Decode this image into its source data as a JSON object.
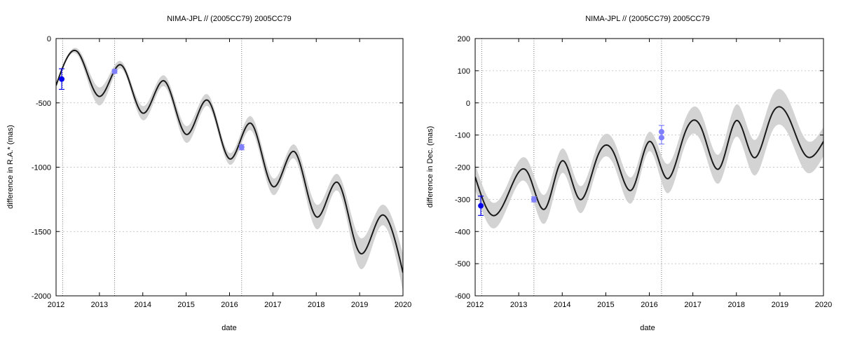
{
  "chart_data": [
    {
      "type": "line",
      "title": "NIMA-JPL // (2005CC79) 2005CC79",
      "xlabel": "date",
      "ylabel": "difference in R.A.* (mas)",
      "xlim": [
        2012,
        2020
      ],
      "ylim": [
        -2000,
        0
      ],
      "x_ticks": [
        "2012",
        "2013",
        "2014",
        "2015",
        "2016",
        "2017",
        "2018",
        "2019",
        "2020"
      ],
      "y_ticks": [
        "0",
        "-500",
        "-1000",
        "-1500",
        "-2000"
      ],
      "grid": "horizontal dotted",
      "vertical_lines": [
        2012.15,
        2013.35,
        2016.28
      ],
      "curve": {
        "x": [
          2012.0,
          2012.5,
          2013.0,
          2013.5,
          2014.0,
          2014.5,
          2015.0,
          2015.5,
          2016.0,
          2016.5,
          2017.0,
          2017.5,
          2018.0,
          2018.5,
          2019.0,
          2019.5,
          2020.0
        ],
        "y": [
          -365,
          -105,
          -450,
          -205,
          -580,
          -330,
          -745,
          -480,
          -935,
          -660,
          -1150,
          -880,
          -1385,
          -1120,
          -1665,
          -1375,
          -1820
        ],
        "band": [
          12,
          25,
          70,
          28,
          55,
          42,
          65,
          45,
          45,
          55,
          65,
          55,
          95,
          65,
          120,
          80,
          145
        ]
      },
      "observations": [
        {
          "x": 2012.13,
          "y": -315,
          "err": 80,
          "color": "#0000ee"
        },
        {
          "x": 2013.35,
          "y": -255,
          "err": 15,
          "color": "#8080ff"
        },
        {
          "x": 2016.28,
          "y": -845,
          "err": 20,
          "color": "#8080ff"
        }
      ],
      "colors": {
        "curve": "#1a1a1a",
        "band": "#d3d3d3",
        "grid": "#b8b8b8"
      }
    },
    {
      "type": "line",
      "title": "NIMA-JPL // (2005CC79) 2005CC79",
      "xlabel": "date",
      "ylabel": "difference in Dec. (mas)",
      "xlim": [
        2012,
        2020
      ],
      "ylim": [
        -600,
        200
      ],
      "x_ticks": [
        "2012",
        "2013",
        "2014",
        "2015",
        "2016",
        "2017",
        "2018",
        "2019",
        "2020"
      ],
      "y_ticks": [
        "200",
        "100",
        "0",
        "-100",
        "-200",
        "-300",
        "-400",
        "-500",
        "-600"
      ],
      "grid": "horizontal dotted",
      "vertical_lines": [
        2012.15,
        2013.35,
        2016.28
      ],
      "curve": {
        "x": [
          2012.0,
          2012.4,
          2012.8,
          2013.2,
          2013.6,
          2014.0,
          2014.4,
          2014.8,
          2015.2,
          2015.6,
          2016.0,
          2016.4,
          2016.8,
          2017.2,
          2017.6,
          2018.0,
          2018.4,
          2018.8,
          2019.2,
          2019.6,
          2020.0
        ],
        "y": [
          -230,
          -350,
          -270,
          -215,
          -330,
          -180,
          -300,
          -170,
          -160,
          -270,
          -120,
          -235,
          -100,
          -80,
          -205,
          -55,
          -170,
          -40,
          -45,
          -165,
          -120
        ],
        "band": [
          40,
          40,
          35,
          38,
          45,
          38,
          42,
          35,
          38,
          40,
          30,
          45,
          40,
          45,
          45,
          50,
          55,
          55,
          55,
          50,
          45
        ]
      },
      "observations": [
        {
          "x": 2012.13,
          "y": -320,
          "err": 30,
          "color": "#0000ee"
        },
        {
          "x": 2013.35,
          "y": -300,
          "err": 8,
          "color": "#8080ff"
        },
        {
          "x": 2016.28,
          "y": -90,
          "err": 20,
          "color": "#8080ff"
        },
        {
          "x": 2016.28,
          "y": -108,
          "err": 20,
          "color": "#8080ff"
        }
      ],
      "colors": {
        "curve": "#1a1a1a",
        "band": "#d3d3d3",
        "grid": "#b8b8b8"
      }
    }
  ]
}
